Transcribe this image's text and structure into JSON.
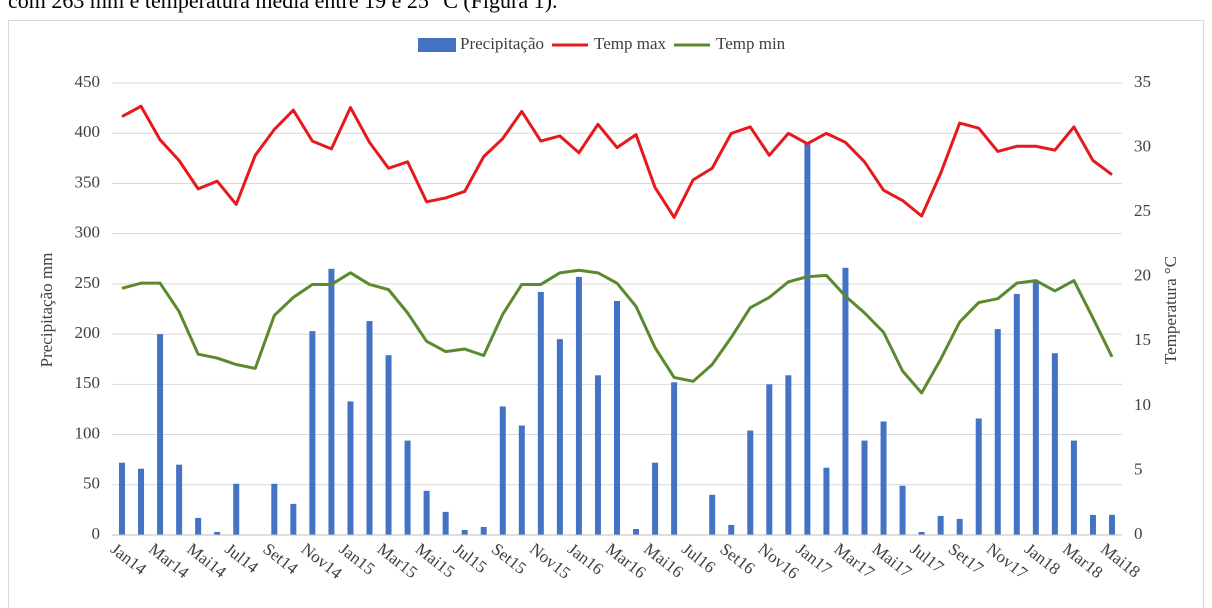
{
  "text_above": "com 263 mm e temperatura média entre 19 e 25 °C (Figura 1).",
  "chart_data": {
    "type": "bar_line",
    "ylabel": "Precipitação mm",
    "y2label": "Temperatura °C",
    "categories": [
      "Jan14",
      null,
      "Mar14",
      null,
      "Mai14",
      null,
      "Jul14",
      null,
      "Set14",
      null,
      "Nov14",
      null,
      "Jan15",
      null,
      "Mar15",
      null,
      "Mai15",
      null,
      "Jul15",
      null,
      "Set15",
      null,
      "Nov15",
      null,
      "Jan16",
      null,
      "Mar16",
      null,
      "Mai16",
      null,
      "Jul16",
      null,
      "Set16",
      null,
      "Nov16",
      null,
      "Jan17",
      null,
      "Mar17",
      null,
      "Mai17",
      null,
      "Jul17",
      null,
      "Set17",
      null,
      "Nov17",
      null,
      "Jan18",
      null,
      "Mar18",
      null,
      "Mai18"
    ],
    "series": [
      {
        "name": "Precipitação",
        "type": "bar",
        "color": "#4472c4",
        "axis": "y",
        "values": [
          72,
          66,
          200,
          70,
          17,
          3,
          51,
          0,
          51,
          31,
          203,
          265,
          133,
          213,
          179,
          94,
          44,
          23,
          5,
          8,
          128,
          109,
          242,
          195,
          257,
          159,
          233,
          6,
          72,
          152,
          0,
          40,
          10,
          104,
          150,
          159,
          390,
          67,
          266,
          94,
          113,
          49,
          3,
          19,
          16,
          116,
          205,
          240,
          252,
          181,
          94,
          20,
          20
        ]
      },
      {
        "name": "Temp max",
        "type": "line",
        "color": "#e41a1c",
        "axis": "y2",
        "values": [
          32.4,
          33.2,
          30.6,
          29.0,
          26.8,
          27.4,
          25.6,
          29.4,
          31.4,
          32.9,
          30.5,
          29.9,
          33.1,
          30.4,
          28.4,
          28.9,
          25.8,
          26.1,
          26.6,
          29.3,
          30.7,
          32.8,
          30.5,
          30.9,
          29.6,
          31.8,
          30.0,
          31.0,
          26.9,
          24.6,
          27.5,
          28.4,
          31.1,
          31.6,
          29.4,
          31.1,
          30.3,
          31.1,
          30.4,
          28.9,
          26.7,
          25.9,
          24.7,
          28.0,
          31.9,
          31.5,
          29.7,
          30.1,
          30.1,
          29.8,
          31.6,
          29.0,
          27.9
        ]
      },
      {
        "name": "Temp min",
        "type": "line",
        "color": "#5b8a2e",
        "axis": "y2",
        "values": [
          19.1,
          19.5,
          19.5,
          17.3,
          14.0,
          13.7,
          13.2,
          12.9,
          17.0,
          18.4,
          19.4,
          19.4,
          20.3,
          19.4,
          19.0,
          17.2,
          15.0,
          14.2,
          14.4,
          13.9,
          17.1,
          19.4,
          19.4,
          20.3,
          20.5,
          20.3,
          19.5,
          17.7,
          14.5,
          12.2,
          11.9,
          13.2,
          15.3,
          17.6,
          18.4,
          19.6,
          20.0,
          20.1,
          18.5,
          17.2,
          15.7,
          12.7,
          11.0,
          13.6,
          16.5,
          18.0,
          18.3,
          19.5,
          19.7,
          18.9,
          19.7,
          16.8,
          13.8
        ]
      }
    ],
    "ylim": [
      0,
      450
    ],
    "yticks": [
      0,
      50,
      100,
      150,
      200,
      250,
      300,
      350,
      400,
      450
    ],
    "y2lim": [
      0,
      35
    ],
    "y2ticks": [
      0,
      5,
      10,
      15,
      20,
      25,
      30,
      35
    ],
    "grid": true,
    "legend": "top"
  }
}
